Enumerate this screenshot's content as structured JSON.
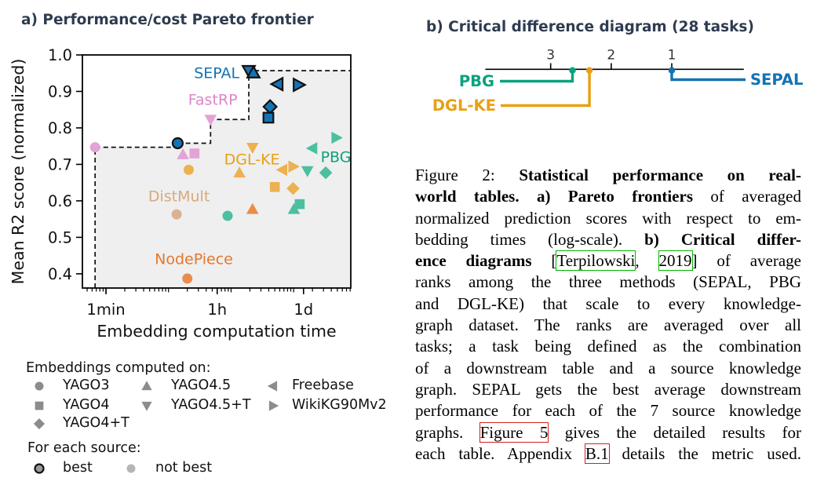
{
  "panel_a": {
    "title": "a) Performance/cost Pareto frontier",
    "legend": {
      "header": "Embeddings computed on:",
      "columns": [
        [
          {
            "shape": "circle",
            "label": "YAGO3"
          },
          {
            "shape": "square",
            "label": "YAGO4"
          },
          {
            "shape": "diamond",
            "label": "YAGO4+T"
          }
        ],
        [
          {
            "shape": "triangle-up",
            "label": "YAGO4.5"
          },
          {
            "shape": "triangle-down",
            "label": "YAGO4.5+T"
          }
        ],
        [
          {
            "shape": "triangle-left",
            "label": "Freebase"
          },
          {
            "shape": "triangle-right",
            "label": "WikiKG90Mv2"
          }
        ]
      ],
      "source_header": "For each source:",
      "source_items": [
        {
          "style": "best",
          "label": "best"
        },
        {
          "style": "not-best",
          "label": "not best"
        }
      ],
      "marker_color": "#8c8c8c",
      "best_fill": "#999999",
      "not_best_fill": "#b5b5b5"
    }
  },
  "panel_b": {
    "title": "b) Critical difference diagram (28 tasks)"
  },
  "chart_data": [
    {
      "id": "pareto",
      "type": "scatter",
      "title": "a) Performance/cost Pareto frontier",
      "xlabel": "Embedding computation time",
      "ylabel": "Mean R2 score (normalized)",
      "x_scale": "log",
      "x_unit": "minutes",
      "x_ticks": [
        {
          "label": "1min",
          "minutes": 1
        },
        {
          "label": "1h",
          "minutes": 60
        },
        {
          "label": "1d",
          "minutes": 1440
        }
      ],
      "x_range_minutes": [
        0.42,
        8200
      ],
      "y_ticks": [
        "1.0",
        "0.9",
        "0.8",
        "0.7",
        "0.6",
        "0.5",
        "0.4"
      ],
      "y_tick_values": [
        1.0,
        0.9,
        0.8,
        0.7,
        0.6,
        0.5,
        0.4
      ],
      "y_range": [
        0.361,
        1.0
      ],
      "grid": false,
      "shade_color": "#efefef",
      "frontier_color": "#111111",
      "pareto_frontier": [
        {
          "minutes": 0.67,
          "score": 0.747
        },
        {
          "minutes": 14,
          "score": 0.758
        },
        {
          "minutes": 47,
          "score": 0.823
        },
        {
          "minutes": 192,
          "score": 0.957
        }
      ],
      "series": [
        {
          "name": "SEPAL",
          "marker_color": "#1473b3",
          "label_color": "#1473b3",
          "label_pos": {
            "minutes": 59,
            "score": 0.9505
          },
          "points": [
            {
              "source": "YAGO4.5+T",
              "shape": "triangle-down",
              "minutes": 192,
              "score": 0.957,
              "best": true
            },
            {
              "source": "YAGO4.5",
              "shape": "triangle-up",
              "minutes": 228,
              "score": 0.951,
              "best": true
            },
            {
              "source": "Freebase",
              "shape": "triangle-left",
              "minutes": 560,
              "score": 0.92,
              "best": true
            },
            {
              "source": "WikiKG90Mv2",
              "shape": "triangle-right",
              "minutes": 1190,
              "score": 0.918,
              "best": true
            },
            {
              "source": "YAGO4+T",
              "shape": "diamond",
              "minutes": 420,
              "score": 0.858,
              "best": true
            },
            {
              "source": "YAGO4",
              "shape": "square",
              "minutes": 395,
              "score": 0.828,
              "best": true
            },
            {
              "source": "YAGO3",
              "shape": "circle",
              "minutes": 14,
              "score": 0.758,
              "best": true
            }
          ]
        },
        {
          "name": "FastRP",
          "marker_color": "#e3a3d5",
          "label_color": "#dd85c9",
          "label_pos": {
            "minutes": 51,
            "score": 0.8774
          },
          "points": [
            {
              "source": "YAGO4.5+T",
              "shape": "triangle-down",
              "minutes": 47,
              "score": 0.823,
              "best": false
            },
            {
              "source": "YAGO3",
              "shape": "circle",
              "minutes": 0.67,
              "score": 0.747,
              "best": false
            },
            {
              "source": "YAGO4",
              "shape": "square",
              "minutes": 26,
              "score": 0.73,
              "best": false
            },
            {
              "source": "YAGO4.5",
              "shape": "triangle-up",
              "minutes": 17,
              "score": 0.727,
              "best": false
            }
          ]
        },
        {
          "name": "DGL-KE",
          "marker_color": "#ecb151",
          "label_color": "#e8a012",
          "label_pos": {
            "minutes": 216,
            "score": 0.714
          },
          "points": [
            {
              "source": "YAGO4.5+T",
              "shape": "triangle-down",
              "minutes": 220,
              "score": 0.746,
              "best": false
            },
            {
              "source": "WikiKG90Mv2",
              "shape": "triangle-right",
              "minutes": 980,
              "score": 0.694,
              "best": false
            },
            {
              "source": "YAGO3",
              "shape": "circle",
              "minutes": 21,
              "score": 0.685,
              "best": false
            },
            {
              "source": "Freebase",
              "shape": "triangle-left",
              "minutes": 665,
              "score": 0.685,
              "best": false
            },
            {
              "source": "YAGO4.5",
              "shape": "triangle-up",
              "minutes": 136,
              "score": 0.677,
              "best": false
            },
            {
              "source": "YAGO4",
              "shape": "square",
              "minutes": 500,
              "score": 0.638,
              "best": false
            },
            {
              "source": "YAGO4+T",
              "shape": "diamond",
              "minutes": 980,
              "score": 0.634,
              "best": false
            }
          ]
        },
        {
          "name": "PBG",
          "marker_color": "#4cbfa0",
          "label_color": "#0aa27e",
          "label_pos": {
            "minutes": 4740,
            "score": 0.7204
          },
          "points": [
            {
              "source": "WikiKG90Mv2",
              "shape": "triangle-right",
              "minutes": 4790,
              "score": 0.773,
              "best": false
            },
            {
              "source": "Freebase",
              "shape": "triangle-left",
              "minutes": 2010,
              "score": 0.744,
              "best": false
            },
            {
              "source": "YAGO4.5+T",
              "shape": "triangle-down",
              "minutes": 1660,
              "score": 0.682,
              "best": false
            },
            {
              "source": "YAGO4+T",
              "shape": "diamond",
              "minutes": 3260,
              "score": 0.677,
              "best": false
            },
            {
              "source": "YAGO4",
              "shape": "square",
              "minutes": 1250,
              "score": 0.591,
              "best": false
            },
            {
              "source": "YAGO4.5",
              "shape": "triangle-up",
              "minutes": 1010,
              "score": 0.577,
              "best": false
            },
            {
              "source": "YAGO3",
              "shape": "circle",
              "minutes": 88,
              "score": 0.559,
              "best": false
            }
          ]
        },
        {
          "name": "DistMult",
          "marker_color": "#dcb193",
          "label_color": "#d9a97b",
          "label_pos": {
            "minutes": 14.7,
            "score": 0.6129
          },
          "points": [
            {
              "source": "YAGO3",
              "shape": "circle",
              "minutes": 13.5,
              "score": 0.563,
              "best": false
            }
          ]
        },
        {
          "name": "NodePiece",
          "marker_color": "#ea8c4a",
          "label_color": "#e5772b",
          "label_pos": {
            "minutes": 25.4,
            "score": 0.4409
          },
          "points": [
            {
              "source": "YAGO4.5",
              "shape": "triangle-up",
              "minutes": 220,
              "score": 0.577,
              "best": false
            },
            {
              "source": "YAGO3",
              "shape": "circle",
              "minutes": 20,
              "score": 0.387,
              "best": false
            }
          ]
        }
      ]
    },
    {
      "id": "critical-difference",
      "type": "cd-diagram",
      "title": "b) Critical difference diagram (28 tasks)",
      "axis_ticks": [
        "3",
        "2",
        "1"
      ],
      "axis_tick_values": [
        3,
        2,
        1
      ],
      "axis_range": [
        4.08,
        -0.19
      ],
      "methods": [
        {
          "name": "PBG",
          "rank": 2.64,
          "color": "#0aa27e",
          "side": "left"
        },
        {
          "name": "DGL-KE",
          "rank": 2.36,
          "color": "#e8a012",
          "side": "left"
        },
        {
          "name": "SEPAL",
          "rank": 1.0,
          "color": "#1473b3",
          "side": "right"
        }
      ]
    }
  ],
  "caption": {
    "lines": [
      [
        {
          "t": "Figure 2:  "
        },
        {
          "t": "Statistical performance on real-",
          "b": true
        }
      ],
      [
        {
          "t": "world tables. a) Pareto frontiers",
          "b": true
        },
        {
          "t": " of averaged"
        }
      ],
      [
        {
          "t": "normalized prediction scores with respect to em-"
        }
      ],
      [
        {
          "t": "bedding times (log-scale).  "
        },
        {
          "t": "b) Critical differ-",
          "b": true
        }
      ],
      [
        {
          "t": "ence diagrams",
          "b": true
        },
        {
          "t": " ["
        },
        {
          "t": "Terpilowski",
          "box": "green"
        },
        {
          "t": ", "
        },
        {
          "t": "2019",
          "box": "green"
        },
        {
          "t": "] of average"
        }
      ],
      [
        {
          "t": "ranks among the three methods (SEPAL, PBG"
        }
      ],
      [
        {
          "t": "and DGL-KE) that scale to every knowledge-"
        }
      ],
      [
        {
          "t": "graph dataset. The ranks are averaged over all"
        }
      ],
      [
        {
          "t": "tasks; a task being defined as the combination"
        }
      ],
      [
        {
          "t": "of a downstream table and a source knowledge"
        }
      ],
      [
        {
          "t": "graph. SEPAL gets the best average downstream"
        }
      ],
      [
        {
          "t": "performance for each of the 7 source knowledge"
        }
      ],
      [
        {
          "t": "graphs. "
        },
        {
          "t": "Figure 5",
          "box": "red"
        },
        {
          "t": " gives the detailed results for"
        }
      ],
      [
        {
          "t": "each table. Appendix "
        },
        {
          "t": "B.1",
          "box": "red"
        },
        {
          "t": " details the metric used."
        }
      ]
    ],
    "box_colors": {
      "green": "#00b400",
      "red": "#d42020"
    }
  },
  "colors": {
    "title": "#2e3b50",
    "axis": "#000000",
    "tick_label": "#111111",
    "cd_tick_label": "#333333"
  }
}
